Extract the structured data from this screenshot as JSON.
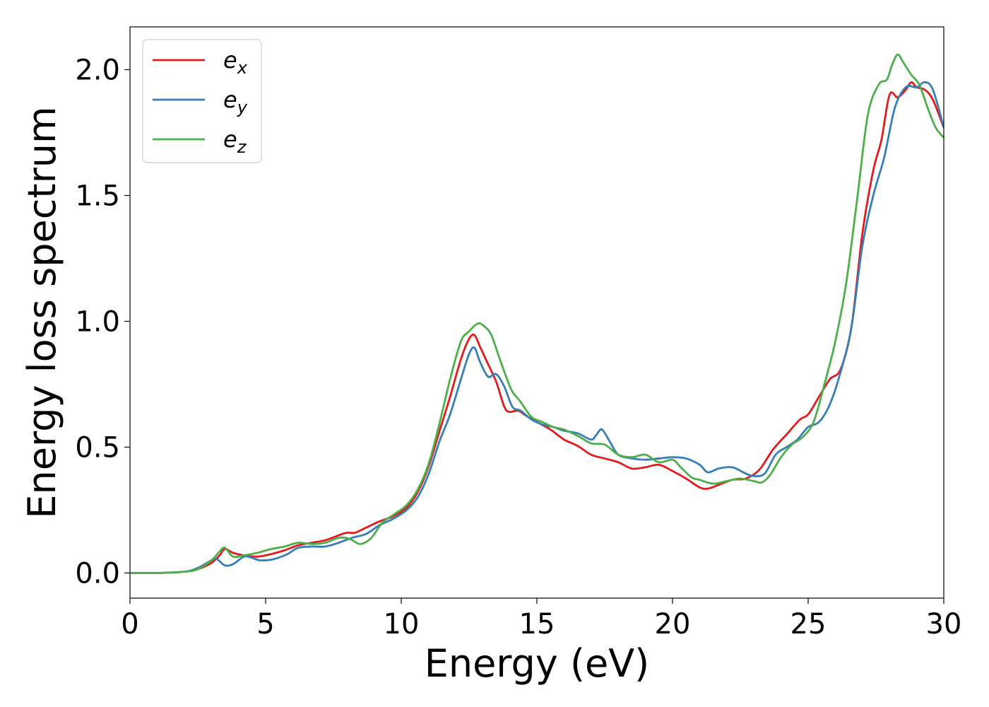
{
  "chart_data": {
    "type": "line",
    "xlabel": "Energy (eV)",
    "ylabel": "Energy loss spectrum",
    "xlim": [
      0,
      30
    ],
    "ylim": [
      -0.1,
      2.17
    ],
    "xticks": [
      {
        "value": 0,
        "label": "0"
      },
      {
        "value": 5,
        "label": "5"
      },
      {
        "value": 10,
        "label": "10"
      },
      {
        "value": 15,
        "label": "15"
      },
      {
        "value": 20,
        "label": "20"
      },
      {
        "value": 25,
        "label": "25"
      },
      {
        "value": 30,
        "label": "30"
      }
    ],
    "yticks": [
      {
        "value": 0.0,
        "label": "0.0"
      },
      {
        "value": 0.5,
        "label": "0.5"
      },
      {
        "value": 1.0,
        "label": "1.0"
      },
      {
        "value": 1.5,
        "label": "1.5"
      },
      {
        "value": 2.0,
        "label": "2.0"
      }
    ],
    "grid": false,
    "legend": {
      "position": "upper-left"
    },
    "series": [
      {
        "name": "e_x",
        "label_base": "e",
        "label_sub": "x",
        "color": "#e41a1c",
        "x": [
          0,
          1,
          2,
          2.5,
          3,
          3.3,
          3.5,
          3.8,
          4.2,
          4.7,
          5.2,
          5.7,
          6.2,
          6.7,
          7.2,
          7.7,
          8.0,
          8.3,
          8.7,
          9.2,
          9.7,
          10.2,
          10.6,
          11.0,
          11.4,
          11.8,
          12.2,
          12.5,
          12.7,
          12.9,
          13.2,
          13.5,
          13.8,
          14.0,
          14.3,
          14.6,
          15.0,
          15.5,
          16.0,
          16.5,
          17.0,
          17.5,
          18.0,
          18.5,
          19.0,
          19.5,
          20.0,
          20.5,
          21.0,
          21.3,
          21.7,
          22.2,
          22.7,
          23.2,
          23.7,
          24.2,
          24.7,
          25.0,
          25.4,
          25.8,
          26.2,
          26.6,
          27.0,
          27.4,
          27.7,
          28.0,
          28.3,
          28.6,
          28.8,
          29.0,
          29.3,
          29.6,
          30.0
        ],
        "values": [
          0.0,
          0.0,
          0.005,
          0.015,
          0.04,
          0.07,
          0.095,
          0.08,
          0.07,
          0.065,
          0.075,
          0.09,
          0.11,
          0.12,
          0.13,
          0.15,
          0.16,
          0.16,
          0.18,
          0.205,
          0.225,
          0.26,
          0.32,
          0.42,
          0.56,
          0.7,
          0.85,
          0.93,
          0.945,
          0.9,
          0.83,
          0.76,
          0.66,
          0.64,
          0.645,
          0.625,
          0.6,
          0.57,
          0.53,
          0.505,
          0.47,
          0.455,
          0.44,
          0.415,
          0.42,
          0.43,
          0.405,
          0.375,
          0.34,
          0.335,
          0.35,
          0.37,
          0.375,
          0.41,
          0.49,
          0.55,
          0.61,
          0.63,
          0.7,
          0.77,
          0.81,
          0.98,
          1.35,
          1.6,
          1.72,
          1.9,
          1.89,
          1.92,
          1.95,
          1.93,
          1.92,
          1.88,
          1.77
        ]
      },
      {
        "name": "e_y",
        "label_base": "e",
        "label_sub": "y",
        "color": "#377eb8",
        "x": [
          0,
          1,
          2,
          2.5,
          3,
          3.2,
          3.5,
          3.8,
          4.2,
          4.5,
          4.8,
          5.3,
          5.8,
          6.2,
          6.7,
          7.2,
          7.7,
          8.2,
          8.7,
          9.2,
          9.7,
          10.2,
          10.6,
          11.0,
          11.4,
          11.8,
          12.2,
          12.5,
          12.7,
          12.9,
          13.2,
          13.5,
          13.8,
          14.1,
          14.4,
          14.8,
          15.2,
          15.6,
          16.0,
          16.5,
          17.0,
          17.2,
          17.4,
          17.7,
          18.0,
          18.5,
          19.0,
          19.5,
          20.0,
          20.5,
          21.0,
          21.3,
          21.7,
          22.2,
          22.7,
          23.0,
          23.4,
          23.8,
          24.2,
          24.6,
          25.0,
          25.4,
          25.8,
          26.2,
          26.6,
          27.0,
          27.4,
          27.8,
          28.2,
          28.6,
          29.0,
          29.3,
          29.6,
          30.0
        ],
        "values": [
          0.0,
          0.0,
          0.005,
          0.02,
          0.05,
          0.055,
          0.03,
          0.035,
          0.065,
          0.06,
          0.05,
          0.055,
          0.075,
          0.1,
          0.105,
          0.105,
          0.12,
          0.14,
          0.155,
          0.19,
          0.215,
          0.25,
          0.3,
          0.39,
          0.52,
          0.63,
          0.77,
          0.87,
          0.895,
          0.84,
          0.78,
          0.79,
          0.74,
          0.66,
          0.645,
          0.61,
          0.59,
          0.58,
          0.565,
          0.555,
          0.53,
          0.55,
          0.57,
          0.52,
          0.47,
          0.455,
          0.45,
          0.455,
          0.46,
          0.455,
          0.43,
          0.4,
          0.415,
          0.42,
          0.395,
          0.385,
          0.395,
          0.47,
          0.5,
          0.53,
          0.58,
          0.6,
          0.67,
          0.8,
          0.98,
          1.3,
          1.5,
          1.65,
          1.85,
          1.93,
          1.93,
          1.95,
          1.92,
          1.77
        ]
      },
      {
        "name": "e_z",
        "label_base": "e",
        "label_sub": "z",
        "color": "#4daf4a",
        "x": [
          0,
          1,
          2,
          2.5,
          3,
          3.3,
          3.5,
          3.8,
          4.2,
          4.7,
          5.2,
          5.7,
          6.2,
          6.7,
          7.2,
          7.7,
          8.1,
          8.5,
          8.9,
          9.3,
          9.7,
          10.2,
          10.6,
          11.0,
          11.4,
          11.8,
          12.2,
          12.5,
          12.8,
          13.0,
          13.3,
          13.6,
          13.9,
          14.1,
          14.4,
          14.8,
          15.2,
          15.6,
          16.0,
          16.5,
          17.0,
          17.5,
          18.0,
          18.5,
          19.0,
          19.5,
          20.0,
          20.3,
          20.7,
          21.0,
          21.5,
          22.0,
          22.5,
          23.0,
          23.3,
          23.6,
          24.0,
          24.4,
          24.8,
          25.2,
          25.6,
          26.0,
          26.4,
          26.8,
          27.2,
          27.6,
          27.9,
          28.1,
          28.3,
          28.5,
          28.8,
          29.1,
          29.4,
          29.7,
          30.0
        ],
        "values": [
          0.0,
          0.0,
          0.005,
          0.015,
          0.05,
          0.085,
          0.1,
          0.065,
          0.07,
          0.08,
          0.095,
          0.105,
          0.12,
          0.115,
          0.12,
          0.14,
          0.135,
          0.115,
          0.14,
          0.2,
          0.23,
          0.27,
          0.33,
          0.43,
          0.59,
          0.77,
          0.92,
          0.96,
          0.99,
          0.985,
          0.95,
          0.86,
          0.77,
          0.72,
          0.68,
          0.62,
          0.6,
          0.58,
          0.57,
          0.545,
          0.515,
          0.51,
          0.47,
          0.46,
          0.47,
          0.44,
          0.45,
          0.42,
          0.38,
          0.37,
          0.355,
          0.365,
          0.375,
          0.365,
          0.36,
          0.39,
          0.46,
          0.51,
          0.54,
          0.6,
          0.75,
          0.92,
          1.15,
          1.48,
          1.82,
          1.94,
          1.96,
          2.02,
          2.06,
          2.03,
          1.98,
          1.94,
          1.85,
          1.77,
          1.73
        ]
      }
    ]
  }
}
